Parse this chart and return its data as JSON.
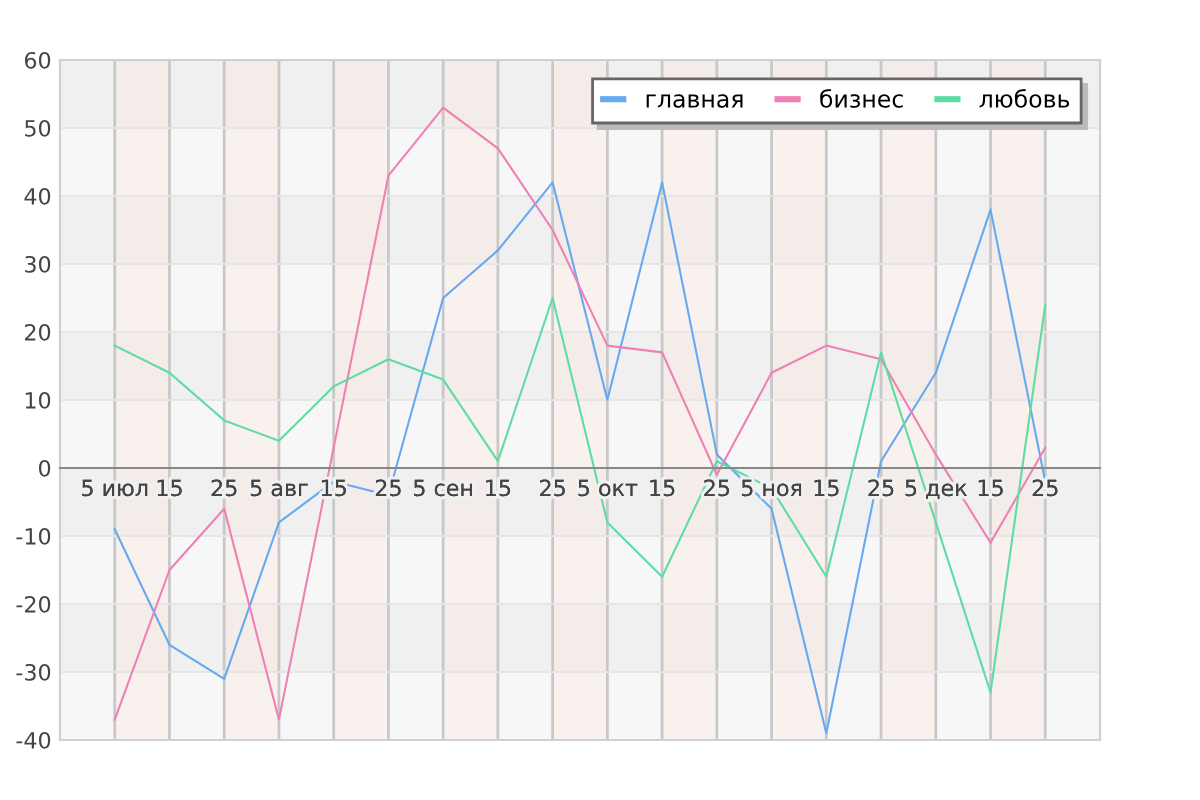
{
  "chart_data": {
    "type": "line",
    "categories": [
      "5 июл",
      "15",
      "25",
      "5 авг",
      "15",
      "25",
      "5 сен",
      "15",
      "25",
      "5 окт",
      "15",
      "25",
      "5 ноя",
      "15",
      "25",
      "5 дек",
      "15",
      "25"
    ],
    "series": [
      {
        "name": "главная",
        "color": "#65a9f0",
        "values": [
          -9,
          -26,
          -31,
          -8,
          -2,
          -4,
          25,
          32,
          42,
          10,
          42,
          2,
          -6,
          -39,
          1,
          14,
          38,
          -2
        ]
      },
      {
        "name": "бизнес",
        "color": "#f07fb5",
        "values": [
          -37,
          -15,
          -6,
          -37,
          3,
          43,
          53,
          47,
          35,
          18,
          17,
          -1,
          14,
          18,
          16,
          2,
          -11,
          3
        ]
      },
      {
        "name": "любовь",
        "color": "#5fdca3",
        "values": [
          18,
          14,
          7,
          4,
          12,
          16,
          13,
          1,
          25,
          -8,
          -16,
          1,
          -3,
          -16,
          17,
          -8,
          -33,
          24
        ]
      }
    ],
    "ylim": [
      -40,
      60
    ],
    "yticks": [
      -40,
      -30,
      -20,
      -10,
      0,
      10,
      20,
      30,
      40,
      50,
      60
    ],
    "grid": true,
    "legend": "top right",
    "marker": "none",
    "line_style": "solid"
  }
}
